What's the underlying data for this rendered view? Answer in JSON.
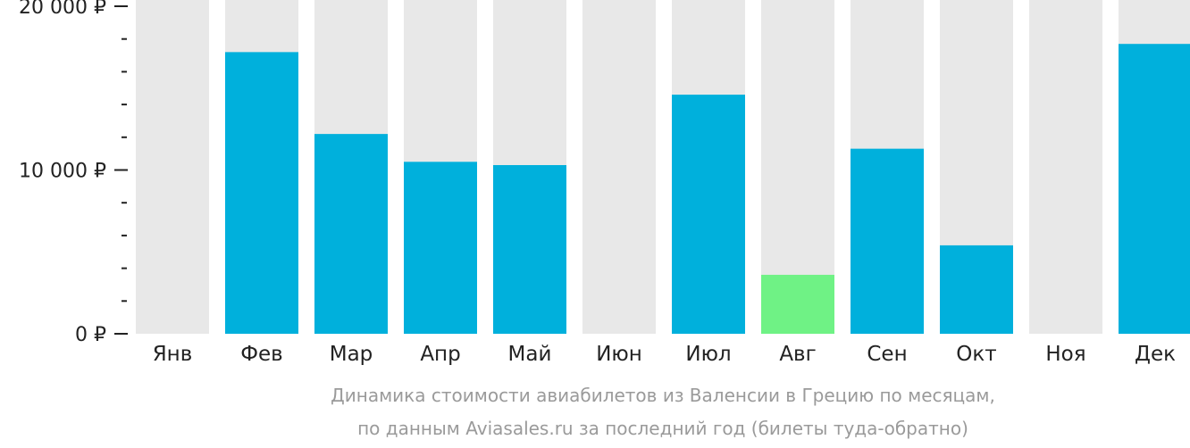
{
  "chart_data": {
    "type": "bar",
    "title": "Динамика стоимости авиабилетов из Валенсии в Грецию по месяцам,",
    "subtitle": "по данным Aviasales.ru за последний год (билеты туда-обратно)",
    "xlabel": "",
    "ylabel": "",
    "categories": [
      "Янв",
      "Фев",
      "Мар",
      "Апр",
      "Май",
      "Июн",
      "Июл",
      "Авг",
      "Сен",
      "Окт",
      "Ноя",
      "Дек"
    ],
    "values": [
      null,
      17200,
      12200,
      10500,
      10300,
      null,
      14600,
      3600,
      11300,
      5400,
      null,
      17700
    ],
    "highlight": [
      false,
      false,
      false,
      false,
      false,
      false,
      false,
      true,
      false,
      false,
      false,
      false
    ],
    "ylim": [
      0,
      20000
    ],
    "major_ticks": [
      {
        "value": 0,
        "label": "0 ₽"
      },
      {
        "value": 10000,
        "label": "10 000 ₽"
      },
      {
        "value": 20000,
        "label": "20 000 ₽"
      }
    ],
    "minor_tick_step": 2000,
    "grid": false,
    "legend": "none",
    "colors": {
      "bar": "#00b0dc",
      "highlight": "#6ff285",
      "background_bar": "#e8e8e8",
      "tick": "#222222"
    }
  }
}
